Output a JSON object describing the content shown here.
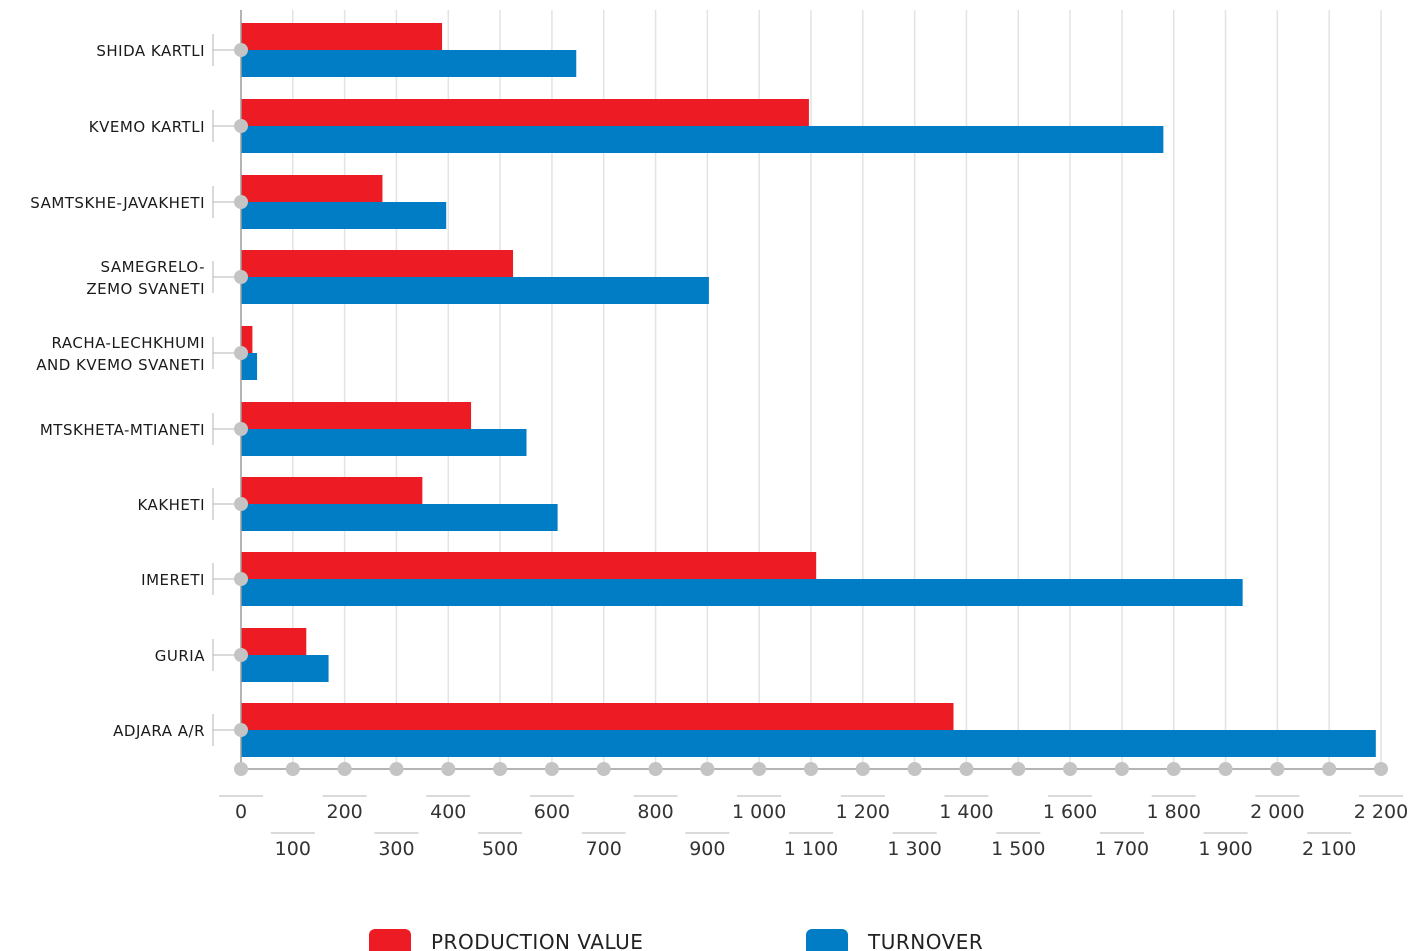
{
  "chart_data": {
    "type": "bar",
    "orientation": "horizontal",
    "categories": [
      "SHIDA KARTLI",
      "KVEMO KARTLI",
      "SAMTSKHE-JAVAKHETI",
      "SAMEGRELO-\nZEMO SVANETI",
      "RACHA-LECHKHUMI\nAND KVEMO SVANETI",
      "MTSKHETA-MTIANETI",
      "KAKHETI",
      "IMERETI",
      "GURIA",
      "ADJARA A/R"
    ],
    "series": [
      {
        "name": "PRODUCTION VALUE",
        "color": "#ed1c24",
        "values": [
          388,
          1096,
          273,
          525,
          22,
          444,
          350,
          1110,
          126,
          1375
        ]
      },
      {
        "name": "TURNOVER",
        "color": "#007dc5",
        "values": [
          647,
          1780,
          396,
          903,
          31,
          551,
          611,
          1933,
          169,
          2190
        ]
      }
    ],
    "xlim": [
      0,
      2200
    ],
    "xticks": [
      "0",
      "100",
      "200",
      "300",
      "400",
      "500",
      "600",
      "700",
      "800",
      "900",
      "1 000",
      "1 100",
      "1 200",
      "1 300",
      "1 400",
      "1 500",
      "1 600",
      "1 700",
      "1 800",
      "1 900",
      "2 000",
      "2 100",
      "2 200"
    ],
    "grid": true,
    "legend_position": "bottom"
  }
}
